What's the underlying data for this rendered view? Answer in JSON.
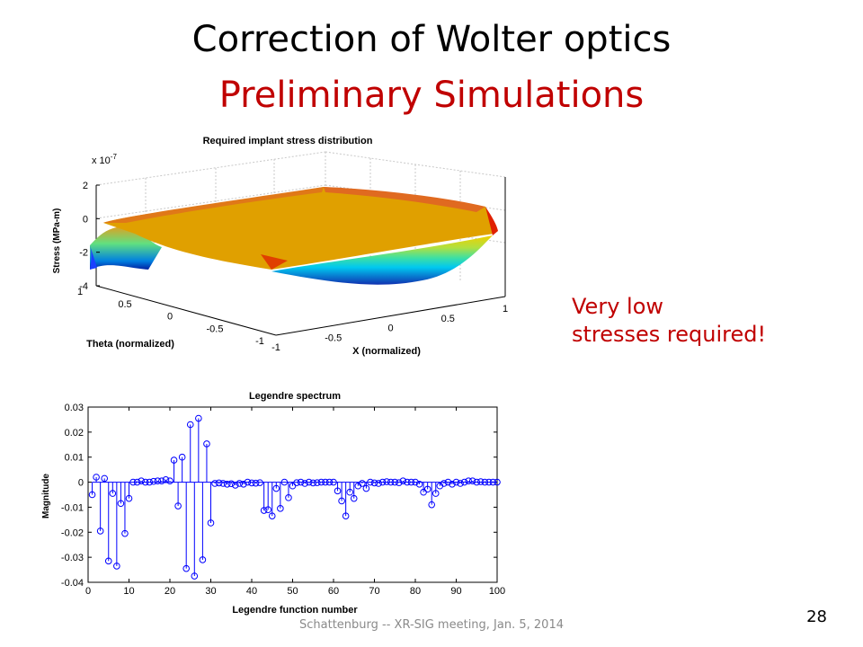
{
  "slide": {
    "title": "Correction of Wolter optics",
    "subtitle": "Preliminary Simulations",
    "note_line1": "Very low",
    "note_line2": "stresses required!",
    "footer": "Schattenburg -- XR-SIG meeting, Jan. 5, 2014",
    "page_number": "28",
    "colors": {
      "title": "#000000",
      "accent": "#c00000",
      "stem": "#0000ff"
    }
  },
  "chart_data": [
    {
      "type": "surface",
      "title": "Required implant stress distribution",
      "zlabel": "Stress (MPa-m)",
      "zscale": "x 10",
      "zscale_exp": "-7",
      "xlabel": "X (normalized)",
      "ylabel": "Theta (normalized)",
      "z_ticks": [
        "2",
        "0",
        "-2",
        "-4"
      ],
      "x_ticks": [
        "-1",
        "-0.5",
        "0",
        "0.5",
        "1"
      ],
      "y_ticks": [
        "1",
        "0.5",
        "0",
        "-0.5",
        "-1"
      ],
      "xlim": [
        -1,
        1
      ],
      "ylim": [
        -1,
        1
      ],
      "zlim": [
        -4,
        2
      ]
    },
    {
      "type": "stem",
      "title": "Legendre spectrum",
      "xlabel": "Legendre function number",
      "ylabel": "Magnitude",
      "xlim": [
        0,
        100
      ],
      "ylim": [
        -0.04,
        0.03
      ],
      "x_ticks": [
        "0",
        "10",
        "20",
        "30",
        "40",
        "50",
        "60",
        "70",
        "80",
        "90",
        "100"
      ],
      "y_ticks": [
        "0.03",
        "0.02",
        "0.01",
        "0",
        "-0.01",
        "-0.02",
        "-0.03",
        "-0.04"
      ],
      "x": [
        1,
        2,
        3,
        4,
        5,
        6,
        7,
        8,
        9,
        10,
        11,
        12,
        13,
        14,
        15,
        16,
        17,
        18,
        19,
        20,
        21,
        22,
        23,
        24,
        25,
        26,
        27,
        28,
        29,
        30,
        31,
        32,
        33,
        34,
        35,
        36,
        37,
        38,
        39,
        40,
        41,
        42,
        43,
        44,
        45,
        46,
        47,
        48,
        49,
        50,
        51,
        52,
        53,
        54,
        55,
        56,
        57,
        58,
        59,
        60,
        61,
        62,
        63,
        64,
        65,
        66,
        67,
        68,
        69,
        70,
        71,
        72,
        73,
        74,
        75,
        76,
        77,
        78,
        79,
        80,
        81,
        82,
        83,
        84,
        85,
        86,
        87,
        88,
        89,
        90,
        91,
        92,
        93,
        94,
        95,
        96,
        97,
        98,
        99,
        100
      ],
      "values": [
        -0.005,
        0.002,
        -0.0195,
        0.0015,
        -0.0315,
        -0.0045,
        -0.0335,
        -0.0085,
        -0.0205,
        -0.0065,
        0,
        0,
        0.0005,
        0,
        0,
        0.0003,
        0.0005,
        0.0005,
        0.001,
        0.0005,
        0.0088,
        -0.0095,
        0.01,
        -0.0345,
        0.023,
        -0.0375,
        0.0255,
        -0.031,
        0.0153,
        -0.0163,
        -0.0005,
        -0.0003,
        -0.0005,
        -0.0008,
        -0.0006,
        -0.0012,
        -0.0005,
        -0.0008,
        0,
        -0.0003,
        -0.0004,
        -0.0002,
        -0.0113,
        -0.011,
        -0.0135,
        -0.0025,
        -0.0105,
        0,
        -0.0062,
        -0.0015,
        -0.0002,
        0,
        -0.0005,
        0,
        -0.0003,
        -0.0002,
        0,
        0,
        0,
        0,
        -0.0035,
        -0.0075,
        -0.0135,
        -0.004,
        -0.0065,
        -0.0015,
        -0.0005,
        -0.0025,
        0,
        -0.0003,
        -0.0005,
        0,
        0.0002,
        0,
        0,
        -0.0002,
        0.0005,
        0,
        0,
        0,
        -0.0008,
        -0.004,
        -0.0028,
        -0.009,
        -0.0045,
        -0.0015,
        -0.0005,
        0,
        -0.0008,
        0,
        -0.0005,
        0,
        0.0005,
        0.0005,
        0,
        0.0002,
        0,
        0,
        0,
        0
      ]
    }
  ]
}
